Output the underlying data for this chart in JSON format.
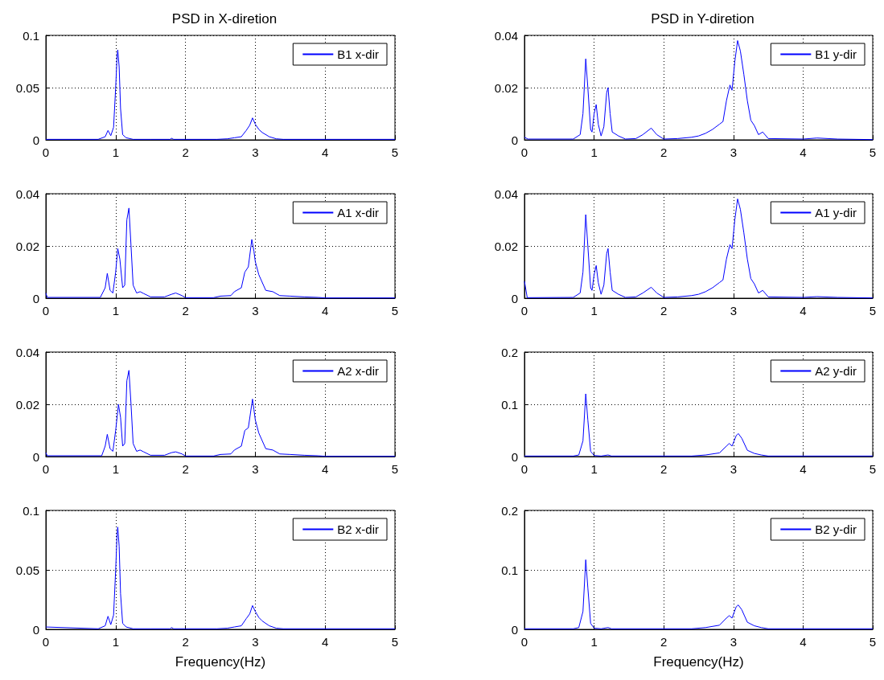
{
  "chart_data": [
    {
      "type": "line",
      "title": "PSD in X-diretion",
      "x": [
        0,
        0.75,
        0.85,
        0.89,
        0.93,
        0.97,
        1.0,
        1.02,
        1.03,
        1.05,
        1.07,
        1.1,
        1.15,
        1.25,
        1.5,
        1.78,
        1.8,
        1.83,
        2.0,
        2.45,
        2.6,
        2.7,
        2.8,
        2.87,
        2.92,
        2.96,
        3.0,
        3.05,
        3.1,
        3.2,
        3.3,
        3.4,
        4.0,
        5.0
      ],
      "series": [
        {
          "name": "B1 x-dir",
          "color": "#0000ff",
          "values": [
            0.0005,
            0.0005,
            0.003,
            0.009,
            0.004,
            0.012,
            0.05,
            0.08,
            0.086,
            0.07,
            0.03,
            0.005,
            0.002,
            0.0005,
            0.0005,
            0.0005,
            0.0015,
            0.0005,
            0.0005,
            0.0005,
            0.001,
            0.002,
            0.003,
            0.009,
            0.014,
            0.021,
            0.015,
            0.01,
            0.007,
            0.003,
            0.001,
            0.0005,
            0.0005,
            0.0005
          ]
        }
      ],
      "xlim": [
        0,
        5
      ],
      "xticks": [
        0,
        1,
        2,
        3,
        4,
        5
      ],
      "ylim": [
        0,
        0.1
      ],
      "yticks": [
        0,
        0.05,
        0.1
      ],
      "grid": true,
      "legend": "top right",
      "line_style": "solid",
      "marker": "none"
    },
    {
      "type": "line",
      "title": "PSD in Y-diretion",
      "x": [
        0,
        0.05,
        0.7,
        0.8,
        0.84,
        0.88,
        0.91,
        0.95,
        0.97,
        1.0,
        1.03,
        1.06,
        1.1,
        1.14,
        1.18,
        1.2,
        1.23,
        1.26,
        1.35,
        1.45,
        1.6,
        1.7,
        1.82,
        1.9,
        2.0,
        2.2,
        2.4,
        2.5,
        2.6,
        2.7,
        2.8,
        2.85,
        2.9,
        2.95,
        2.98,
        3.02,
        3.06,
        3.1,
        3.15,
        3.2,
        3.25,
        3.3,
        3.36,
        3.42,
        3.5,
        4.0,
        4.2,
        4.5,
        5.0
      ],
      "series": [
        {
          "name": "B1 y-dir",
          "color": "#0000ff",
          "values": [
            0.001,
            0.0003,
            0.0003,
            0.002,
            0.01,
            0.031,
            0.02,
            0.004,
            0.003,
            0.01,
            0.0135,
            0.006,
            0.0015,
            0.005,
            0.018,
            0.02,
            0.01,
            0.003,
            0.0015,
            0.0003,
            0.0005,
            0.002,
            0.0045,
            0.002,
            0.0003,
            0.0005,
            0.001,
            0.0015,
            0.0025,
            0.004,
            0.006,
            0.007,
            0.015,
            0.021,
            0.019,
            0.03,
            0.038,
            0.034,
            0.025,
            0.015,
            0.0075,
            0.0055,
            0.002,
            0.003,
            0.0005,
            0.0003,
            0.0007,
            0.0003,
            0.0001
          ]
        }
      ],
      "xlim": [
        0,
        5
      ],
      "xticks": [
        0,
        1,
        2,
        3,
        4,
        5
      ],
      "ylim": [
        0,
        0.04
      ],
      "yticks": [
        0,
        0.02,
        0.04
      ],
      "grid": true,
      "legend": "top right",
      "line_style": "solid",
      "marker": "none"
    },
    {
      "type": "line",
      "x": [
        0,
        0.02,
        0.78,
        0.85,
        0.88,
        0.92,
        0.96,
        1.0,
        1.03,
        1.06,
        1.1,
        1.13,
        1.16,
        1.19,
        1.22,
        1.25,
        1.3,
        1.35,
        1.4,
        1.5,
        1.7,
        1.8,
        1.86,
        1.95,
        2.0,
        2.4,
        2.5,
        2.65,
        2.7,
        2.8,
        2.85,
        2.9,
        2.95,
        2.98,
        3.0,
        3.05,
        3.15,
        3.25,
        3.35,
        3.5,
        3.7,
        3.9,
        4.0,
        5.0
      ],
      "series": [
        {
          "name": "A1 x-dir",
          "color": "#0000ff",
          "values": [
            0.002,
            0.0003,
            0.0003,
            0.004,
            0.0095,
            0.003,
            0.002,
            0.01,
            0.019,
            0.015,
            0.004,
            0.005,
            0.03,
            0.0345,
            0.02,
            0.005,
            0.002,
            0.0025,
            0.0018,
            0.0005,
            0.0005,
            0.0015,
            0.002,
            0.001,
            0.0002,
            0.0002,
            0.0008,
            0.001,
            0.0025,
            0.004,
            0.01,
            0.012,
            0.0225,
            0.018,
            0.014,
            0.009,
            0.003,
            0.0025,
            0.001,
            0.0008,
            0.0005,
            0.0003,
            0.0001,
            0.0001
          ]
        }
      ],
      "xlim": [
        0,
        5
      ],
      "xticks": [
        0,
        1,
        2,
        3,
        4,
        5
      ],
      "ylim": [
        0,
        0.04
      ],
      "yticks": [
        0,
        0.02,
        0.04
      ],
      "grid": true,
      "legend": "top right",
      "line_style": "solid",
      "marker": "none"
    },
    {
      "type": "line",
      "x": [
        0,
        0.04,
        0.7,
        0.8,
        0.84,
        0.88,
        0.91,
        0.95,
        0.97,
        1.0,
        1.03,
        1.06,
        1.1,
        1.14,
        1.18,
        1.2,
        1.23,
        1.26,
        1.35,
        1.45,
        1.6,
        1.7,
        1.82,
        1.9,
        2.0,
        2.2,
        2.4,
        2.5,
        2.6,
        2.7,
        2.8,
        2.85,
        2.9,
        2.95,
        2.98,
        3.02,
        3.06,
        3.1,
        3.15,
        3.2,
        3.25,
        3.3,
        3.36,
        3.42,
        3.5,
        4.0,
        4.2,
        4.5,
        5.0
      ],
      "series": [
        {
          "name": "A1 y-dir",
          "color": "#0000ff",
          "values": [
            0.0065,
            0.0002,
            0.0003,
            0.002,
            0.01,
            0.032,
            0.02,
            0.004,
            0.003,
            0.009,
            0.0125,
            0.006,
            0.0015,
            0.005,
            0.017,
            0.019,
            0.01,
            0.003,
            0.0015,
            0.0003,
            0.0005,
            0.002,
            0.0042,
            0.002,
            0.0003,
            0.0005,
            0.001,
            0.0015,
            0.0025,
            0.004,
            0.006,
            0.007,
            0.015,
            0.0205,
            0.019,
            0.03,
            0.038,
            0.034,
            0.025,
            0.015,
            0.0075,
            0.0055,
            0.002,
            0.003,
            0.0005,
            0.0003,
            0.0006,
            0.0003,
            0.0001
          ]
        }
      ],
      "xlim": [
        0,
        5
      ],
      "xticks": [
        0,
        1,
        2,
        3,
        4,
        5
      ],
      "ylim": [
        0,
        0.04
      ],
      "yticks": [
        0,
        0.02,
        0.04
      ],
      "grid": true,
      "legend": "top right",
      "line_style": "solid",
      "marker": "none"
    },
    {
      "type": "line",
      "x": [
        0,
        0.02,
        0.8,
        0.85,
        0.88,
        0.92,
        0.96,
        1.0,
        1.04,
        1.07,
        1.1,
        1.13,
        1.16,
        1.19,
        1.22,
        1.25,
        1.3,
        1.35,
        1.4,
        1.5,
        1.7,
        1.8,
        1.86,
        1.95,
        2.0,
        2.4,
        2.5,
        2.65,
        2.7,
        2.8,
        2.85,
        2.9,
        2.96,
        2.98,
        3.0,
        3.05,
        3.15,
        3.25,
        3.35,
        3.5,
        3.7,
        3.9,
        4.0,
        5.0
      ],
      "series": [
        {
          "name": "A2 x-dir",
          "color": "#0000ff",
          "values": [
            0.0015,
            0.0003,
            0.0003,
            0.004,
            0.0085,
            0.003,
            0.002,
            0.01,
            0.02,
            0.015,
            0.004,
            0.005,
            0.029,
            0.033,
            0.02,
            0.005,
            0.002,
            0.0025,
            0.0018,
            0.0005,
            0.0005,
            0.0015,
            0.0018,
            0.001,
            0.0002,
            0.0002,
            0.0008,
            0.001,
            0.0025,
            0.004,
            0.01,
            0.011,
            0.022,
            0.018,
            0.014,
            0.009,
            0.003,
            0.0025,
            0.001,
            0.0008,
            0.0005,
            0.0003,
            0.0001,
            0.0001
          ]
        }
      ],
      "xlim": [
        0,
        5
      ],
      "xticks": [
        0,
        1,
        2,
        3,
        4,
        5
      ],
      "ylim": [
        0,
        0.04
      ],
      "yticks": [
        0,
        0.02,
        0.04
      ],
      "grid": true,
      "legend": "top right",
      "line_style": "solid",
      "marker": "none"
    },
    {
      "type": "line",
      "x": [
        0,
        0.7,
        0.78,
        0.84,
        0.88,
        0.91,
        0.95,
        1.0,
        1.1,
        1.2,
        1.25,
        2.4,
        2.6,
        2.8,
        2.9,
        2.94,
        2.98,
        3.04,
        3.07,
        3.12,
        3.2,
        3.3,
        3.4,
        3.5,
        5.0
      ],
      "series": [
        {
          "name": "A2 y-dir",
          "color": "#0000ff",
          "values": [
            0.001,
            0.001,
            0.003,
            0.03,
            0.12,
            0.07,
            0.01,
            0.002,
            0.001,
            0.003,
            0.001,
            0.001,
            0.003,
            0.007,
            0.02,
            0.025,
            0.02,
            0.04,
            0.044,
            0.035,
            0.012,
            0.006,
            0.003,
            0.001,
            0.001
          ]
        }
      ],
      "xlim": [
        0,
        5
      ],
      "xticks": [
        0,
        1,
        2,
        3,
        4,
        5
      ],
      "ylim": [
        0,
        0.2
      ],
      "yticks": [
        0,
        0.1,
        0.2
      ],
      "grid": true,
      "legend": "top right",
      "line_style": "solid",
      "marker": "none"
    },
    {
      "type": "line",
      "xlabel": "Frequency(Hz)",
      "x": [
        0,
        0.75,
        0.85,
        0.89,
        0.93,
        0.97,
        1.0,
        1.02,
        1.03,
        1.05,
        1.07,
        1.1,
        1.15,
        1.25,
        1.5,
        1.78,
        1.8,
        1.83,
        2.0,
        2.45,
        2.6,
        2.7,
        2.8,
        2.87,
        2.92,
        2.96,
        3.0,
        3.05,
        3.1,
        3.2,
        3.3,
        3.4,
        4.0,
        5.0
      ],
      "series": [
        {
          "name": "B2 x-dir",
          "color": "#0000ff",
          "values": [
            0.002,
            0.0005,
            0.003,
            0.011,
            0.004,
            0.012,
            0.05,
            0.08,
            0.086,
            0.07,
            0.03,
            0.005,
            0.002,
            0.0005,
            0.0005,
            0.0005,
            0.0015,
            0.0005,
            0.0005,
            0.0005,
            0.001,
            0.002,
            0.003,
            0.009,
            0.013,
            0.02,
            0.015,
            0.01,
            0.007,
            0.003,
            0.001,
            0.0005,
            0.0005,
            0.0005
          ]
        }
      ],
      "xlim": [
        0,
        5
      ],
      "xticks": [
        0,
        1,
        2,
        3,
        4,
        5
      ],
      "ylim": [
        0,
        0.1
      ],
      "yticks": [
        0,
        0.05,
        0.1
      ],
      "grid": true,
      "legend": "top right",
      "line_style": "solid",
      "marker": "none"
    },
    {
      "type": "line",
      "xlabel": "Frequency(Hz)",
      "x": [
        0,
        0.7,
        0.78,
        0.84,
        0.88,
        0.91,
        0.95,
        1.0,
        1.1,
        1.2,
        1.25,
        2.4,
        2.6,
        2.8,
        2.9,
        2.94,
        2.98,
        3.04,
        3.07,
        3.12,
        3.2,
        3.3,
        3.4,
        3.5,
        5.0
      ],
      "series": [
        {
          "name": "B2 y-dir",
          "color": "#0000ff",
          "values": [
            0.001,
            0.001,
            0.003,
            0.03,
            0.117,
            0.07,
            0.01,
            0.002,
            0.001,
            0.003,
            0.001,
            0.001,
            0.003,
            0.007,
            0.019,
            0.023,
            0.019,
            0.038,
            0.041,
            0.033,
            0.012,
            0.006,
            0.003,
            0.001,
            0.001
          ]
        }
      ],
      "xlim": [
        0,
        5
      ],
      "xticks": [
        0,
        1,
        2,
        3,
        4,
        5
      ],
      "ylim": [
        0,
        0.2
      ],
      "yticks": [
        0,
        0.1,
        0.2
      ],
      "grid": true,
      "legend": "top right",
      "line_style": "solid",
      "marker": "none"
    }
  ]
}
